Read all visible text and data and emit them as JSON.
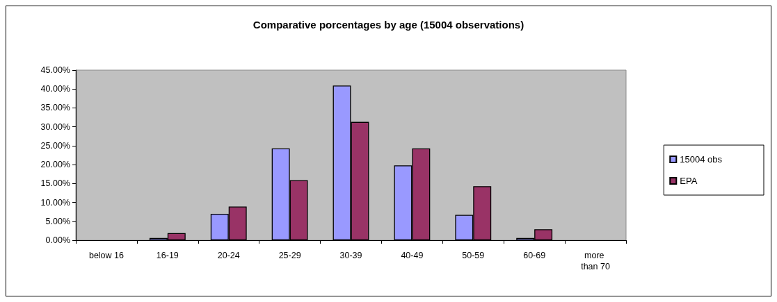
{
  "chart_data": {
    "type": "bar",
    "title": "Comparative porcentages by age (15004 observations)",
    "categories": [
      "below 16",
      "16-19",
      "20-24",
      "25-29",
      "30-39",
      "40-49",
      "50-59",
      "60-69",
      "more than 70"
    ],
    "series": [
      {
        "name": "15004 obs",
        "color": "#9999ff",
        "values": [
          null,
          0.6,
          7.0,
          24.3,
          40.9,
          19.8,
          6.7,
          0.6,
          null
        ]
      },
      {
        "name": "EPA",
        "color": "#993366",
        "values": [
          null,
          1.9,
          8.9,
          15.9,
          31.3,
          24.3,
          14.3,
          2.9,
          null
        ]
      }
    ],
    "ylim": [
      0,
      45
    ],
    "yticks": [
      {
        "value": 0,
        "label": "0.00%"
      },
      {
        "value": 5,
        "label": "5.00%"
      },
      {
        "value": 10,
        "label": "10.00%"
      },
      {
        "value": 15,
        "label": "15.00%"
      },
      {
        "value": 20,
        "label": "20.00%"
      },
      {
        "value": 25,
        "label": "25.00%"
      },
      {
        "value": 30,
        "label": "30.00%"
      },
      {
        "value": 35,
        "label": "35.00%"
      },
      {
        "value": 40,
        "label": "40.00%"
      },
      {
        "value": 45,
        "label": "45.00%"
      }
    ],
    "legend": "right"
  }
}
